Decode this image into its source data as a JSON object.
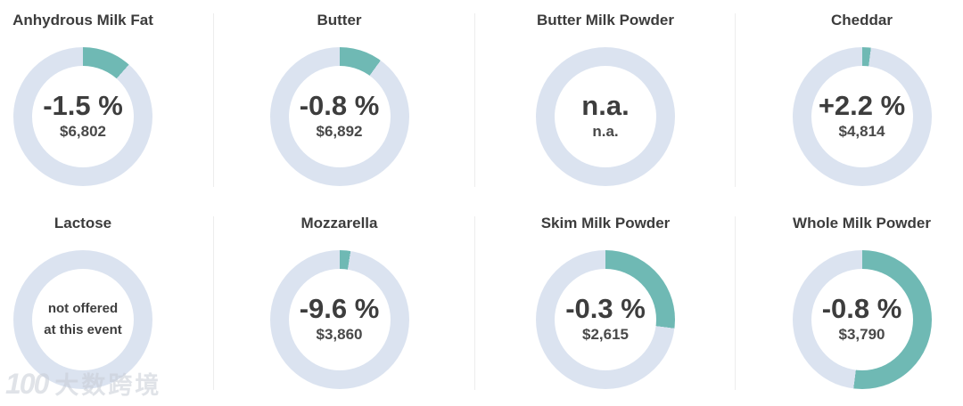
{
  "colors": {
    "accent": "#6fb9b4",
    "ring": "#dbe3f0",
    "title_text": "#3c3c3c",
    "value_text": "#3d3d3d"
  },
  "watermark": {
    "logo": "100",
    "text": "大数跨境"
  },
  "cards": [
    {
      "name": "Anhydrous Milk Fat",
      "change": "-1.5 %",
      "price": "$6,802",
      "arc_pct": 11.5
    },
    {
      "name": "Butter",
      "change": "-0.8 %",
      "price": "$6,892",
      "arc_pct": 10
    },
    {
      "name": "Butter Milk Powder",
      "change": "n.a.",
      "price": "n.a.",
      "arc_pct": 0
    },
    {
      "name": "Cheddar",
      "change": "+2.2 %",
      "price": "$4,814",
      "arc_pct": 2
    },
    {
      "name": "Lactose",
      "note": "not offered\nat this event",
      "arc_pct": 0
    },
    {
      "name": "Mozzarella",
      "change": "-9.6 %",
      "price": "$3,860",
      "arc_pct": 2.5
    },
    {
      "name": "Skim Milk Powder",
      "change": "-0.3 %",
      "price": "$2,615",
      "arc_pct": 27
    },
    {
      "name": "Whole Milk Powder",
      "change": "-0.8 %",
      "price": "$3,790",
      "arc_pct": 52
    }
  ],
  "chart_data": {
    "type": "pie",
    "subtype": "donut-gauge-grid",
    "layout": "4 columns x 2 rows, teal arc starts at 12 o'clock and runs clockwise over a light blue ring",
    "charts": [
      {
        "title": "Anhydrous Milk Fat",
        "change_pct": -1.5,
        "price_usd": 6802,
        "arc_fill_pct": 11.5
      },
      {
        "title": "Butter",
        "change_pct": -0.8,
        "price_usd": 6892,
        "arc_fill_pct": 10
      },
      {
        "title": "Butter Milk Powder",
        "change_pct": null,
        "price_usd": null,
        "center_text": "n.a. / n.a.",
        "arc_fill_pct": 0
      },
      {
        "title": "Cheddar",
        "change_pct": 2.2,
        "price_usd": 4814,
        "arc_fill_pct": 2
      },
      {
        "title": "Lactose",
        "change_pct": null,
        "price_usd": null,
        "center_text": "not offered at this event",
        "arc_fill_pct": 0
      },
      {
        "title": "Mozzarella",
        "change_pct": -9.6,
        "price_usd": 3860,
        "arc_fill_pct": 2.5
      },
      {
        "title": "Skim Milk Powder",
        "change_pct": -0.3,
        "price_usd": 2615,
        "arc_fill_pct": 27
      },
      {
        "title": "Whole Milk Powder",
        "change_pct": -0.8,
        "price_usd": 3790,
        "arc_fill_pct": 52
      }
    ]
  }
}
